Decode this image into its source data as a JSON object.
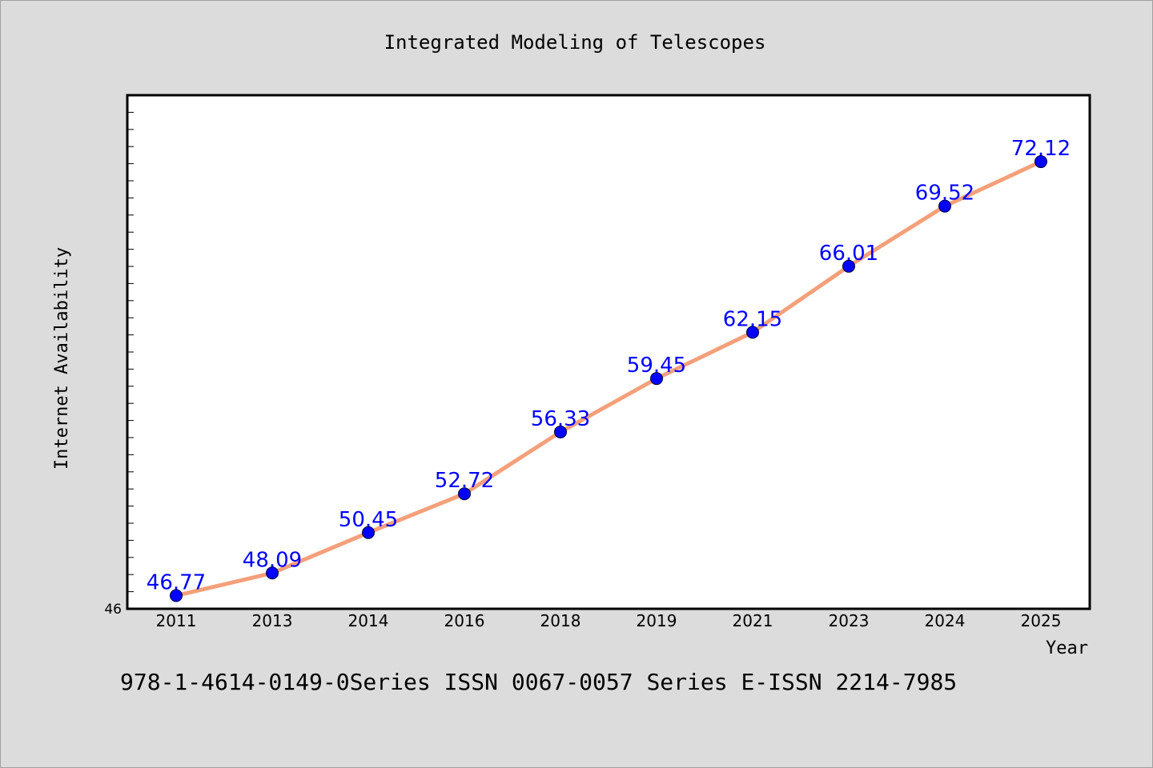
{
  "chart_data": {
    "type": "line",
    "title": "Integrated Modeling of Telescopes",
    "xlabel": "Year",
    "ylabel": "Internet Availability",
    "categories": [
      "2011",
      "2013",
      "2014",
      "2016",
      "2018",
      "2019",
      "2021",
      "2023",
      "2024",
      "2025"
    ],
    "series": [
      {
        "values": [
          46.77,
          48.09,
          50.45,
          52.72,
          56.33,
          59.45,
          62.15,
          66.01,
          69.52,
          72.12
        ],
        "labels": [
          "46.77",
          "48.09",
          "50.45",
          "52.72",
          "56.33",
          "59.45",
          "62.15",
          "66.01",
          "69.52",
          "72.12"
        ],
        "line_color": "#f4a07a",
        "marker_color": "#0000ff"
      }
    ],
    "ylim": [
      46,
      76
    ],
    "y_tick_labels": [
      "46"
    ],
    "grid": false,
    "legend": "none"
  },
  "footer_text": "978-1-4614-0149-0Series ISSN 0067-0057 Series E-ISSN 2214-7985",
  "colors": {
    "background": "#dcdcdc",
    "plot_background": "#ffffff",
    "data_label": "#0000ff"
  }
}
